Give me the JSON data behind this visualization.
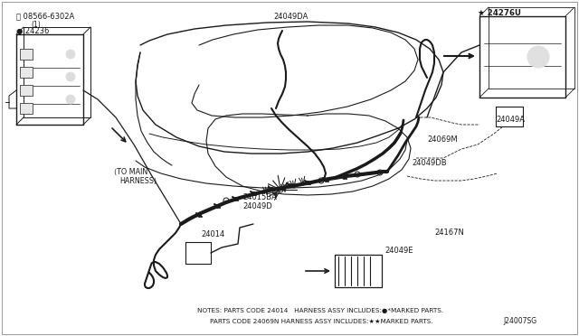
{
  "background_color": "#ffffff",
  "line_color": "#1a1a1a",
  "fig_width": 6.4,
  "fig_height": 3.72,
  "dpi": 100,
  "notes_line1": "NOTES: PARTS CODE 24014   HARNESS ASSY INCLUDES:●*MARKED PARTS.",
  "notes_line2": "PARTS CODE 24069N HARNESS ASSY INCLUDES:★★MARKED PARTS.",
  "diagram_code": "J24007SG",
  "border_color": "#cccccc"
}
